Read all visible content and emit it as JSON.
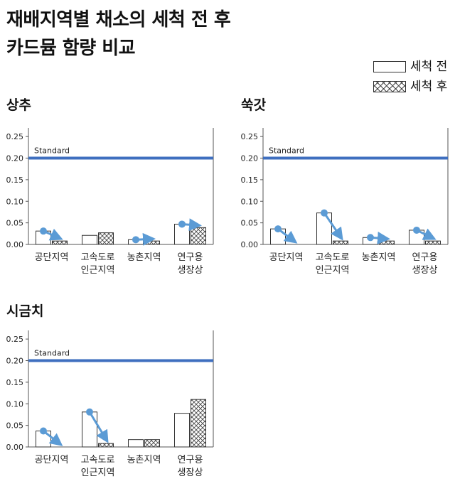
{
  "header": {
    "title_line1": "재배지역별 채소의 세척 전 후",
    "title_line2": "카드뮴 함량 비교"
  },
  "legend": {
    "before_label": "세척 전",
    "after_label": "세척 후"
  },
  "colors": {
    "standard_line": "#3f6fbf",
    "arrow": "#5b9bd5",
    "bar_edge": "#333333",
    "axis": "#555555"
  },
  "chart_data": [
    {
      "type": "bar",
      "title": "상추",
      "categories": [
        [
          "공단지역"
        ],
        [
          "고속도로",
          "인근지역"
        ],
        [
          "농촌지역"
        ],
        [
          "연구용",
          "생장상"
        ]
      ],
      "series": [
        {
          "name": "세척 전",
          "values": [
            0.031,
            0.021,
            0.011,
            0.047
          ]
        },
        {
          "name": "세척 후",
          "values": [
            0.008,
            0.027,
            0.008,
            0.039
          ]
        }
      ],
      "ylim": [
        0,
        0.27
      ],
      "yticks": [
        "0.00",
        "0.05",
        "0.10",
        "0.15",
        "0.20",
        "0.25"
      ],
      "standard": {
        "label": "Standard",
        "value": 0.2
      },
      "arrows": [
        0,
        2,
        3
      ]
    },
    {
      "type": "bar",
      "title": "쑥갓",
      "categories": [
        [
          "공단지역"
        ],
        [
          "고속도로",
          "인근지역"
        ],
        [
          "농촌지역"
        ],
        [
          "연구용",
          "생장상"
        ]
      ],
      "series": [
        {
          "name": "세척 전",
          "values": [
            0.036,
            0.073,
            0.016,
            0.033
          ]
        },
        {
          "name": "세척 후",
          "values": [
            0.0,
            0.008,
            0.008,
            0.008
          ]
        }
      ],
      "ylim": [
        0,
        0.27
      ],
      "yticks": [
        "0.00",
        "0.05",
        "0.10",
        "0.15",
        "0.20",
        "0.25"
      ],
      "standard": {
        "label": "Standard",
        "value": 0.2
      },
      "arrows": [
        0,
        1,
        2,
        3
      ]
    },
    {
      "type": "bar",
      "title": "시금치",
      "categories": [
        [
          "공단지역"
        ],
        [
          "고속도로",
          "인근지역"
        ],
        [
          "농촌지역"
        ],
        [
          "연구용",
          "생장상"
        ]
      ],
      "series": [
        {
          "name": "세척 전",
          "values": [
            0.037,
            0.081,
            0.017,
            0.078
          ]
        },
        {
          "name": "세척 후",
          "values": [
            0.0,
            0.008,
            0.017,
            0.11
          ]
        }
      ],
      "ylim": [
        0,
        0.27
      ],
      "yticks": [
        "0.00",
        "0.05",
        "0.10",
        "0.15",
        "0.20",
        "0.25"
      ],
      "standard": {
        "label": "Standard",
        "value": 0.2
      },
      "arrows": [
        0,
        1
      ]
    }
  ]
}
